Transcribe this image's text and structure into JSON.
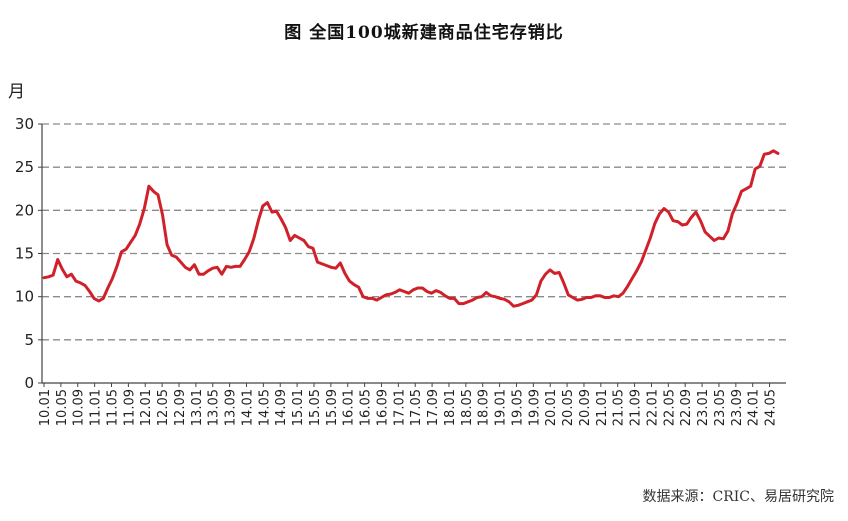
{
  "chart_data": {
    "type": "line",
    "title": "图    全国100城新建商品住宅存销比",
    "ylabel": "月",
    "source": "数据来源：CRIC、易居研究院",
    "ylim": [
      0,
      30
    ],
    "yticks": [
      0,
      5,
      10,
      15,
      20,
      25,
      30
    ],
    "grid": "dashed horizontal",
    "line_color": "#d0202a",
    "xticks": [
      "10.01",
      "10.05",
      "10.09",
      "11.01",
      "11.05",
      "11.09",
      "12.01",
      "12.05",
      "12.09",
      "13.01",
      "13.05",
      "13.09",
      "14.01",
      "14.05",
      "14.09",
      "15.01",
      "15.05",
      "15.09",
      "16.01",
      "16.05",
      "16.09",
      "17.01",
      "17.05",
      "17.09",
      "18.01",
      "18.05",
      "18.09",
      "19.01",
      "19.05",
      "19.09",
      "20.01",
      "20.05",
      "20.09",
      "21.01",
      "21.05",
      "21.09",
      "22.01",
      "22.05",
      "22.09",
      "23.01",
      "23.05",
      "23.09",
      "24.01",
      "24.05"
    ],
    "series": [
      {
        "x_start": "10.01",
        "x_end": "24.07",
        "values": [
          12.2,
          12.3,
          12.5,
          14.3,
          13.2,
          12.3,
          12.6,
          11.8,
          11.6,
          11.3,
          10.6,
          9.8,
          9.5,
          9.8,
          11,
          12.1,
          13.5,
          15.2,
          15.5,
          16.3,
          17.1,
          18.4,
          20.2,
          22.8,
          22.2,
          21.8,
          19.5,
          16,
          14.8,
          14.6,
          14,
          13.4,
          13.1,
          13.7,
          12.6,
          12.6,
          13,
          13.3,
          13.4,
          12.6,
          13.5,
          13.4,
          13.5,
          13.5,
          14.3,
          15.2,
          16.7,
          18.8,
          20.5,
          20.9,
          19.8,
          19.9,
          19,
          18,
          16.5,
          17.1,
          16.8,
          16.5,
          15.8,
          15.6,
          14,
          13.8,
          13.6,
          13.4,
          13.3,
          13.9,
          12.7,
          11.8,
          11.4,
          11.1,
          10,
          9.8,
          9.8,
          9.6,
          9.9,
          10.2,
          10.3,
          10.5,
          10.8,
          10.6,
          10.4,
          10.8,
          11,
          11,
          10.6,
          10.4,
          10.7,
          10.5,
          10.1,
          9.8,
          9.8,
          9.2,
          9.2,
          9.4,
          9.6,
          9.9,
          10,
          10.5,
          10.1,
          10,
          9.8,
          9.7,
          9.4,
          8.9,
          9,
          9.2,
          9.4,
          9.6,
          10.2,
          11.8,
          12.6,
          13.1,
          12.7,
          12.8,
          11.6,
          10.2,
          9.9,
          9.6,
          9.7,
          9.9,
          9.9,
          10.1,
          10.1,
          9.9,
          9.9,
          10.1,
          10,
          10.4,
          11.2,
          12.1,
          13,
          14,
          15.4,
          16.8,
          18.5,
          19.6,
          20.2,
          19.8,
          18.8,
          18.7,
          18.3,
          18.4,
          19.2,
          19.8,
          18.8,
          17.5,
          17,
          16.5,
          16.8,
          16.7,
          17.6,
          19.6,
          20.8,
          22.2,
          22.5,
          22.8,
          24.8,
          25.1,
          26.5,
          26.6,
          26.9,
          26.6
        ]
      }
    ]
  }
}
